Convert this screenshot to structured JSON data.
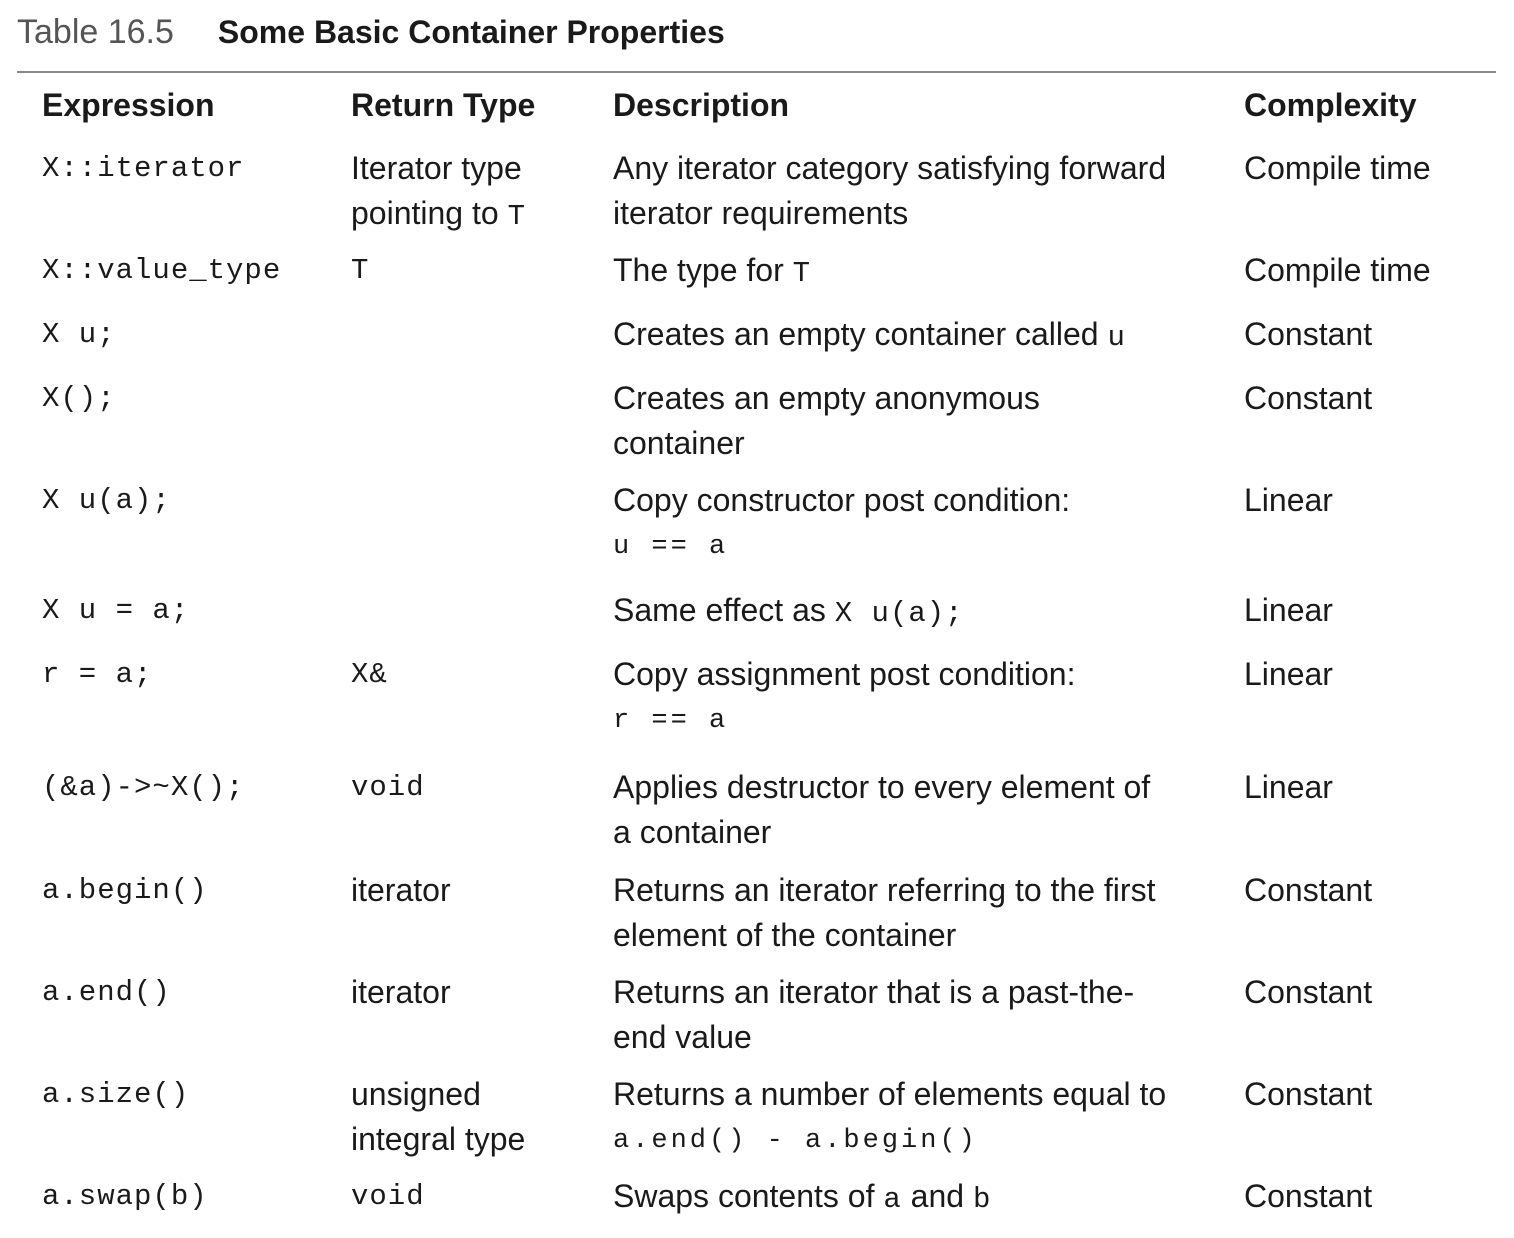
{
  "table": {
    "number": "Table 16.5",
    "title": "Some Basic Container Properties",
    "headers": {
      "expression": "Expression",
      "return_type": "Return Type",
      "description": "Description",
      "complexity": "Complexity"
    },
    "rows": [
      {
        "expression": "X::iterator",
        "return_type_1": "Iterator type",
        "return_type_2a": "pointing to ",
        "return_type_2b": "T",
        "description_1": "Any iterator category satisfying forward",
        "description_2": "iterator requirements",
        "complexity": "Compile time"
      },
      {
        "expression": "X::value_type",
        "return_type": "T",
        "description_a": "The type for ",
        "description_b": "T",
        "complexity": "Compile time"
      },
      {
        "expression": "X u;",
        "description_a": "Creates an empty container called ",
        "description_b": "u",
        "complexity": "Constant"
      },
      {
        "expression": "X();",
        "description_1": "Creates an empty anonymous",
        "description_2": "container",
        "complexity": "Constant"
      },
      {
        "expression": "X u(a);",
        "description_1": "Copy constructor post condition:",
        "description_code": "u == a",
        "complexity": "Linear"
      },
      {
        "expression": "X u = a;",
        "description_a": "Same effect as ",
        "description_b": "X u(a);",
        "complexity": "Linear"
      },
      {
        "expression": "r = a;",
        "return_type": "X&",
        "description_1": "Copy assignment post condition:",
        "description_code": "r == a",
        "complexity": "Linear"
      },
      {
        "expression": "(&a)->~X();",
        "return_type": "void",
        "description_1": "Applies destructor to every element of",
        "description_2": "a container",
        "complexity": "Linear"
      },
      {
        "expression": "a.begin()",
        "return_type": "iterator",
        "description_1": "Returns an iterator referring to the first",
        "description_2": "element of the container",
        "complexity": "Constant"
      },
      {
        "expression": "a.end()",
        "return_type": "iterator",
        "description_1": "Returns an iterator that is a past-the-",
        "description_2": "end value",
        "complexity": "Constant"
      },
      {
        "expression": "a.size()",
        "return_type_1": "unsigned",
        "return_type_2": "integral type",
        "description_1": "Returns a number of elements equal to",
        "description_code": "a.end() - a.begin()",
        "complexity": "Constant"
      },
      {
        "expression": "a.swap(b)",
        "return_type": "void",
        "description_a": "Swaps contents of ",
        "description_b": "a",
        "description_c": " and ",
        "description_d": "b",
        "complexity": "Constant"
      }
    ]
  }
}
